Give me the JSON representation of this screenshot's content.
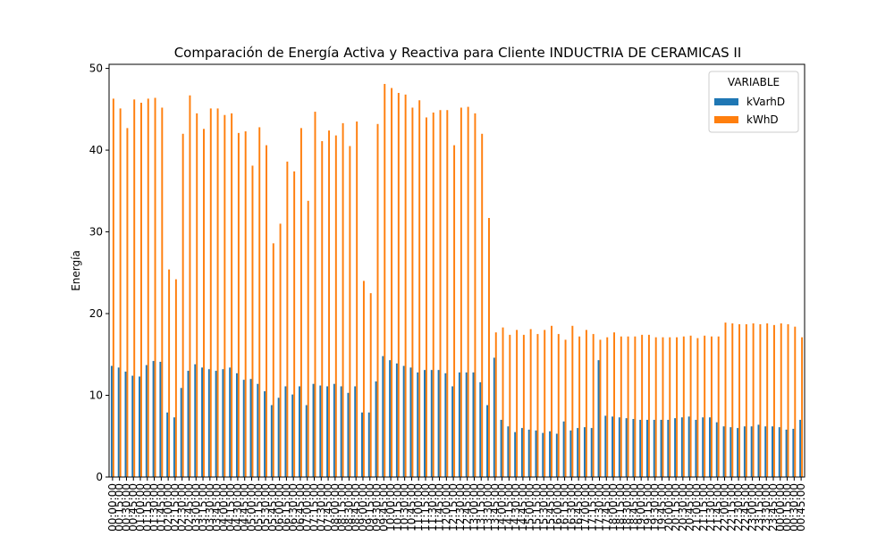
{
  "chart_data": {
    "type": "bar",
    "title": "Comparación de Energía Activa y Reactiva para Cliente INDUCTRIA DE CERAMICAS II",
    "ylabel": "Energía",
    "legend_title": "VARIABLE",
    "legend": "upper right",
    "categories": [
      "00:00:00",
      "00:15:00",
      "00:30:00",
      "00:45:00",
      "01:00:00",
      "01:15:00",
      "01:30:00",
      "01:45:00",
      "02:00:00",
      "02:15:00",
      "02:30:00",
      "02:45:00",
      "03:00:00",
      "03:15:00",
      "03:30:00",
      "03:45:00",
      "04:00:00",
      "04:15:00",
      "04:30:00",
      "04:45:00",
      "05:00:00",
      "05:15:00",
      "05:30:00",
      "05:45:00",
      "06:00:00",
      "06:15:00",
      "06:30:00",
      "06:45:00",
      "07:00:00",
      "07:15:00",
      "07:30:00",
      "07:45:00",
      "08:00:00",
      "08:15:00",
      "08:30:00",
      "08:45:00",
      "09:00:00",
      "09:15:00",
      "09:30:00",
      "09:45:00",
      "10:00:00",
      "10:15:00",
      "10:30:00",
      "10:45:00",
      "11:00:00",
      "11:15:00",
      "11:30:00",
      "11:45:00",
      "12:00:00",
      "12:15:00",
      "12:30:00",
      "12:45:00",
      "13:00:00",
      "13:15:00",
      "13:30:00",
      "13:45:00",
      "14:00:00",
      "14:15:00",
      "14:30:00",
      "14:45:00",
      "15:00:00",
      "15:15:00",
      "15:30:00",
      "15:45:00",
      "16:00:00",
      "16:15:00",
      "16:30:00",
      "16:45:00",
      "17:00:00",
      "17:15:00",
      "17:30:00",
      "17:45:00",
      "18:00:00",
      "18:15:00",
      "18:30:00",
      "18:45:00",
      "19:00:00",
      "19:15:00",
      "19:30:00",
      "19:45:00",
      "20:00:00",
      "20:15:00",
      "20:30:00",
      "20:45:00",
      "21:00:00",
      "21:15:00",
      "21:30:00",
      "21:45:00",
      "22:00:00",
      "22:15:00",
      "22:30:00",
      "22:45:00",
      "23:00:00",
      "23:15:00",
      "23:30:00",
      "23:45:00",
      "00:00:00",
      "00:15:00",
      "00:30:00",
      "00:45:00"
    ],
    "series": [
      {
        "name": "kVarhD",
        "color": "#1f77b4",
        "values": [
          13.6,
          13.4,
          12.9,
          12.4,
          12.3,
          13.7,
          14.2,
          14.1,
          7.9,
          7.3,
          10.9,
          13,
          13.8,
          13.4,
          13.2,
          13,
          13.2,
          13.4,
          12.7,
          11.9,
          12,
          11.4,
          10.5,
          8.8,
          9.7,
          11.1,
          10.1,
          11.1,
          8.8,
          11.4,
          11.2,
          11.1,
          11.4,
          11.1,
          10.3,
          11.1,
          7.9,
          7.9,
          11.7,
          14.8,
          14.3,
          13.9,
          13.6,
          13.4,
          12.8,
          13.1,
          13.1,
          13.1,
          12.7,
          11.1,
          12.8,
          12.8,
          12.8,
          11.6,
          8.8,
          14.6,
          7,
          6.2,
          5.5,
          6,
          5.8,
          5.7,
          5.4,
          5.6,
          5.3,
          6.8,
          5.7,
          6,
          6.1,
          6,
          14.3,
          7.5,
          7.4,
          7.3,
          7.2,
          7.1,
          7,
          7,
          7,
          7,
          7,
          7.2,
          7.3,
          7.4,
          7,
          7.3,
          7.3,
          6.7,
          6.2,
          6.1,
          6,
          6.2,
          6.2,
          6.4,
          6.2,
          6.2,
          6.1,
          5.8,
          5.9,
          7
        ]
      },
      {
        "name": "kWhD",
        "color": "#ff7f0e",
        "values": [
          46.3,
          45.1,
          42.7,
          46.2,
          45.8,
          46.3,
          46.4,
          45.2,
          25.4,
          24.2,
          42,
          46.7,
          44.5,
          42.6,
          45.1,
          45.1,
          44.3,
          44.5,
          42.1,
          42.3,
          38.1,
          42.8,
          40.6,
          28.6,
          31,
          38.6,
          37.4,
          42.7,
          33.8,
          44.7,
          41.1,
          42.4,
          41.8,
          43.3,
          40.5,
          43.5,
          24,
          22.5,
          43.2,
          48.1,
          47.6,
          47,
          46.8,
          45.2,
          46.1,
          44,
          44.6,
          44.9,
          44.9,
          40.6,
          45.2,
          45.3,
          44.5,
          42,
          31.7,
          17.7,
          18.3,
          17.4,
          18,
          17.4,
          18.1,
          17.5,
          18,
          18.5,
          17.5,
          16.8,
          18.5,
          17.2,
          18,
          17.5,
          16.8,
          17.1,
          17.7,
          17.2,
          17.2,
          17.2,
          17.4,
          17.4,
          17.1,
          17.1,
          17.1,
          17.1,
          17.2,
          17.3,
          17,
          17.3,
          17.2,
          17.2,
          18.9,
          18.8,
          18.7,
          18.7,
          18.8,
          18.7,
          18.8,
          18.6,
          18.8,
          18.7,
          18.4,
          17.1
        ]
      }
    ],
    "ylim": [
      0,
      50.5
    ],
    "yticks": [
      0,
      10,
      20,
      30,
      40,
      50
    ]
  }
}
